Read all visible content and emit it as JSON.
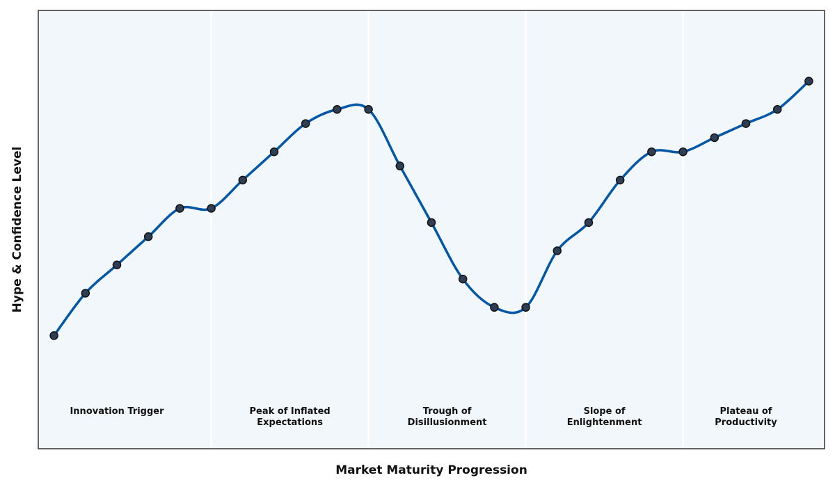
{
  "chart_data": {
    "type": "line",
    "title": "",
    "xlabel": "Market Maturity Progression",
    "ylabel": "Hype & Confidence Level",
    "x": [
      0,
      1,
      2,
      3,
      4,
      5,
      6,
      7,
      8,
      9,
      10,
      11,
      12,
      13,
      14,
      15,
      16,
      17,
      18,
      19,
      20,
      21,
      22,
      23,
      24
    ],
    "series": [
      {
        "values": [
          20,
          35,
          45,
          55,
          65,
          65,
          75,
          85,
          95,
          100,
          100,
          80,
          60,
          40,
          30,
          30,
          50,
          60,
          75,
          85,
          85,
          90,
          95,
          100,
          110
        ]
      }
    ],
    "xlim": [
      -0.5,
      24.5
    ],
    "ylim": [
      -20,
      135
    ],
    "grid": false,
    "legend": "none",
    "phases": [
      {
        "label_lines": [
          "Innovation Trigger"
        ],
        "start": -0.5,
        "end": 5
      },
      {
        "label_lines": [
          "Peak of Inflated",
          "Expectations"
        ],
        "start": 5,
        "end": 10
      },
      {
        "label_lines": [
          "Trough of",
          "Disillusionment"
        ],
        "start": 10,
        "end": 15
      },
      {
        "label_lines": [
          "Slope of",
          "Enlightenment"
        ],
        "start": 15,
        "end": 20
      },
      {
        "label_lines": [
          "Plateau of",
          "Productivity"
        ],
        "start": 20,
        "end": 24.5
      }
    ],
    "colors": {
      "line": "#0057a8",
      "marker_fill": "#2e3f55",
      "marker_edge": "#111111",
      "plot_bg": "#f2f7fb",
      "phase_divider": "#ffffff",
      "frame": "#333333"
    }
  }
}
